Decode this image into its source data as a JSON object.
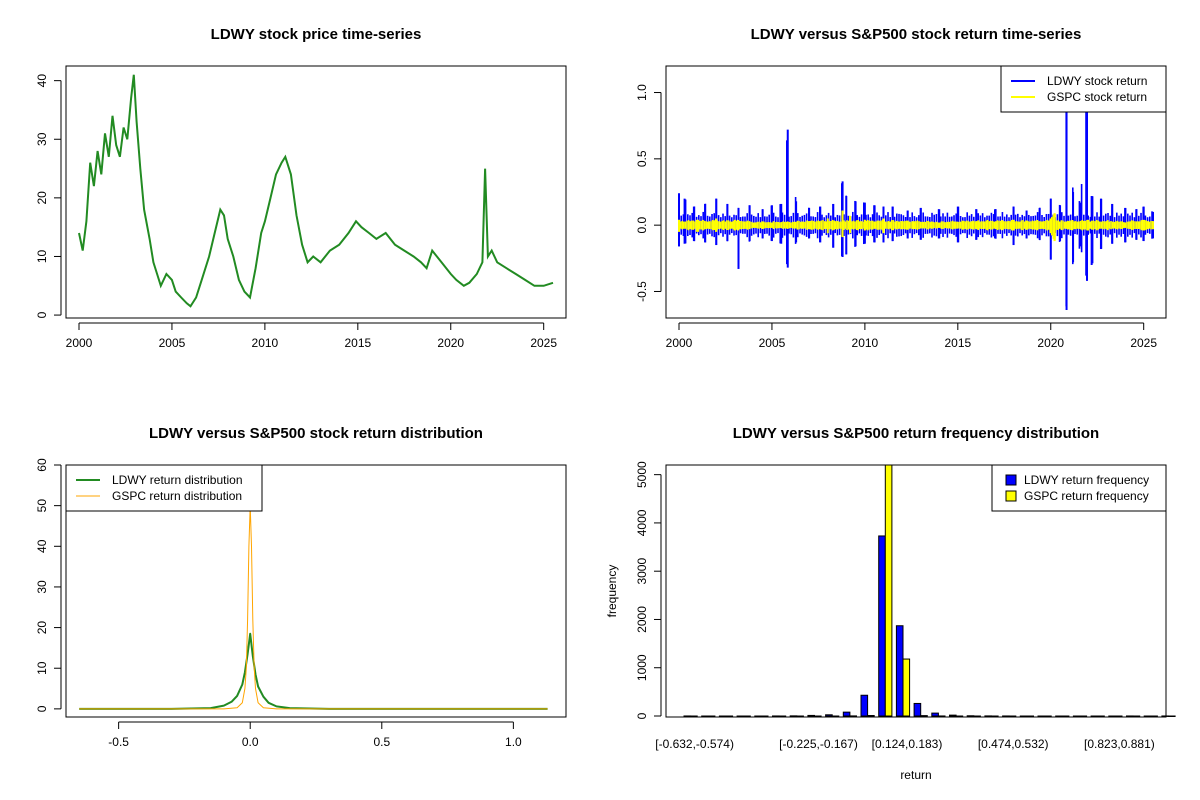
{
  "chart_data": [
    {
      "type": "line",
      "title": "LDWY stock price time-series",
      "xlabel": "",
      "ylabel": "",
      "xlim": [
        1999.3,
        2026.2
      ],
      "ylim": [
        -0.5,
        42.5
      ],
      "x_ticks": [
        "2000",
        "2005",
        "2010",
        "2015",
        "2020",
        "2025"
      ],
      "y_ticks": [
        "0",
        "10",
        "20",
        "30",
        "40"
      ],
      "colors": {
        "line": "#228B22"
      },
      "series": [
        {
          "x": [
            2000.0,
            2000.2,
            2000.4,
            2000.6,
            2000.8,
            2001.0,
            2001.2,
            2001.4,
            2001.6,
            2001.8,
            2002.0,
            2002.2,
            2002.4,
            2002.6,
            2002.8,
            2002.95,
            2003.1,
            2003.3,
            2003.5,
            2003.8,
            2004.0,
            2004.2,
            2004.4,
            2004.7,
            2005.0,
            2005.2,
            2005.5,
            2005.8,
            2006.0,
            2006.3,
            2006.6,
            2007.0,
            2007.3,
            2007.6,
            2007.8,
            2008.0,
            2008.3,
            2008.6,
            2008.9,
            2009.2,
            2009.5,
            2009.8,
            2010.0,
            2010.3,
            2010.6,
            2010.9,
            2011.1,
            2011.4,
            2011.7,
            2012.0,
            2012.3,
            2012.6,
            2013.0,
            2013.5,
            2014.0,
            2014.5,
            2014.9,
            2015.2,
            2015.6,
            2016.0,
            2016.5,
            2017.0,
            2017.5,
            2018.0,
            2018.4,
            2018.7,
            2019.0,
            2019.5,
            2020.0,
            2020.3,
            2020.7,
            2021.0,
            2021.4,
            2021.7,
            2021.85,
            2022.0,
            2022.2,
            2022.5,
            2023.0,
            2023.5,
            2024.0,
            2024.5,
            2025.0,
            2025.5
          ],
          "y": [
            14,
            11,
            16,
            26,
            22,
            28,
            24,
            31,
            27,
            34,
            29,
            27,
            32,
            30,
            37,
            41,
            33,
            25,
            18,
            13,
            9,
            7,
            5,
            7,
            6,
            4,
            3,
            2,
            1.5,
            3,
            6,
            10,
            14,
            18,
            17,
            13,
            10,
            6,
            4,
            3,
            8,
            14,
            16,
            20,
            24,
            26,
            27,
            24,
            17,
            12,
            9,
            10,
            9,
            11,
            12,
            14,
            16,
            15,
            14,
            13,
            14,
            12,
            11,
            10,
            9,
            8,
            11,
            9,
            7,
            6,
            5,
            5.5,
            7,
            9,
            25,
            10,
            11,
            9,
            8,
            7,
            6,
            5,
            5,
            5.5
          ]
        }
      ]
    },
    {
      "type": "line",
      "title": "LDWY versus S&P500 stock return time-series",
      "xlabel": "",
      "ylabel": "",
      "xlim": [
        1999.3,
        2026.2
      ],
      "ylim": [
        -0.7,
        1.2
      ],
      "x_ticks": [
        "2000",
        "2005",
        "2010",
        "2015",
        "2020",
        "2025"
      ],
      "y_ticks": [
        "-0.5",
        "0.0",
        "0.5",
        "1.0"
      ],
      "legend": {
        "position": "top-right"
      },
      "series": [
        {
          "name": "LDWY stock return",
          "color": "#0000FF",
          "x": [
            2000.0,
            2000.3,
            2000.8,
            2001.4,
            2002.0,
            2002.6,
            2003.2,
            2003.8,
            2004.5,
            2005.0,
            2005.5,
            2005.85,
            2006.3,
            2007.0,
            2007.6,
            2008.3,
            2008.8,
            2009.0,
            2009.5,
            2010.0,
            2010.5,
            2011.0,
            2011.5,
            2012.3,
            2013.0,
            2014.0,
            2015.0,
            2016.0,
            2017.0,
            2018.0,
            2018.7,
            2019.4,
            2020.0,
            2020.5,
            2020.85,
            2021.2,
            2021.6,
            2021.95,
            2022.2,
            2022.7,
            2023.3,
            2024.0,
            2024.6,
            2025.0,
            2025.5
          ],
          "max": [
            0.24,
            0.2,
            0.14,
            0.16,
            0.2,
            0.16,
            0.13,
            0.15,
            0.12,
            0.15,
            0.16,
            0.72,
            0.18,
            0.13,
            0.14,
            0.16,
            0.33,
            0.22,
            0.18,
            0.17,
            0.15,
            0.14,
            0.14,
            0.11,
            0.13,
            0.12,
            0.14,
            0.12,
            0.12,
            0.14,
            0.11,
            0.13,
            0.2,
            0.15,
            1.13,
            0.25,
            0.17,
            0.99,
            0.22,
            0.2,
            0.16,
            0.13,
            0.12,
            0.14,
            0.1
          ],
          "min": [
            -0.16,
            -0.14,
            -0.12,
            -0.13,
            -0.15,
            -0.12,
            -0.33,
            -0.12,
            -0.1,
            -0.12,
            -0.14,
            -0.32,
            -0.13,
            -0.1,
            -0.13,
            -0.17,
            -0.24,
            -0.22,
            -0.16,
            -0.14,
            -0.13,
            -0.13,
            -0.12,
            -0.1,
            -0.11,
            -0.1,
            -0.13,
            -0.11,
            -0.1,
            -0.15,
            -0.1,
            -0.11,
            -0.26,
            -0.12,
            -0.64,
            -0.28,
            -0.16,
            -0.42,
            -0.3,
            -0.18,
            -0.14,
            -0.13,
            -0.11,
            -0.12,
            -0.1
          ]
        },
        {
          "name": "GSPC stock return",
          "color": "#FFFF00",
          "x": [
            2000.0,
            2001.0,
            2002.0,
            2003.0,
            2004.0,
            2005.0,
            2006.0,
            2007.0,
            2008.0,
            2008.8,
            2009.2,
            2010.0,
            2011.0,
            2012.0,
            2014.0,
            2016.0,
            2018.0,
            2020.0,
            2020.2,
            2021.0,
            2022.0,
            2023.0,
            2024.0,
            2025.0,
            2025.5
          ],
          "max": [
            0.04,
            0.04,
            0.05,
            0.04,
            0.02,
            0.02,
            0.02,
            0.03,
            0.05,
            0.11,
            0.07,
            0.04,
            0.05,
            0.03,
            0.02,
            0.03,
            0.04,
            0.05,
            0.09,
            0.03,
            0.04,
            0.03,
            0.02,
            0.04,
            0.03
          ],
          "min": [
            -0.05,
            -0.05,
            -0.05,
            -0.04,
            -0.02,
            -0.02,
            -0.02,
            -0.03,
            -0.06,
            -0.09,
            -0.06,
            -0.04,
            -0.06,
            -0.03,
            -0.02,
            -0.03,
            -0.04,
            -0.06,
            -0.12,
            -0.03,
            -0.04,
            -0.03,
            -0.02,
            -0.04,
            -0.03
          ]
        }
      ]
    },
    {
      "type": "line",
      "title": "LDWY versus S&P500 stock return distribution",
      "xlabel": "",
      "ylabel": "",
      "xlim": [
        -0.7,
        1.2
      ],
      "ylim": [
        -2,
        60
      ],
      "x_ticks": [
        "-0.5",
        "0.0",
        "0.5",
        "1.0"
      ],
      "y_ticks": [
        "0",
        "10",
        "20",
        "30",
        "40",
        "50",
        "60"
      ],
      "legend": {
        "position": "top-left"
      },
      "series": [
        {
          "name": "LDWY return distribution",
          "color": "#228B22",
          "x": [
            -0.65,
            -0.3,
            -0.15,
            -0.1,
            -0.07,
            -0.05,
            -0.03,
            -0.02,
            -0.01,
            0.0,
            0.01,
            0.02,
            0.03,
            0.05,
            0.07,
            0.1,
            0.15,
            0.3,
            0.6,
            1.13
          ],
          "y": [
            0,
            0,
            0.2,
            0.8,
            1.8,
            3.2,
            6,
            9,
            13.5,
            18.5,
            13,
            8.5,
            5.5,
            3,
            1.5,
            0.6,
            0.2,
            0,
            0,
            0
          ]
        },
        {
          "name": "GSPC return distribution",
          "color": "#FFA500",
          "x": [
            -0.65,
            -0.1,
            -0.05,
            -0.03,
            -0.02,
            -0.015,
            -0.01,
            -0.005,
            0.0,
            0.005,
            0.01,
            0.015,
            0.02,
            0.03,
            0.05,
            0.1,
            1.13
          ],
          "y": [
            0,
            0,
            0.3,
            1.5,
            5,
            10,
            22,
            40,
            50,
            40,
            22,
            10,
            5,
            1.5,
            0.3,
            0,
            0
          ]
        }
      ]
    },
    {
      "type": "bar",
      "title": "LDWY versus S&P500 return frequency distribution",
      "xlabel": "return",
      "ylabel": "frequency",
      "ylim": [
        0,
        5200
      ],
      "y_ticks": [
        "0",
        "1000",
        "2000",
        "3000",
        "4000",
        "5000"
      ],
      "legend": {
        "position": "top-right"
      },
      "category_labels": [
        "[-0.632,-0.574)",
        "[-0.225,-0.167)",
        "[0.124,0.183)",
        "[0.474,0.532)",
        "[0.823,0.881)"
      ],
      "label_bins": [
        0,
        7,
        12,
        18,
        24
      ],
      "series": [
        {
          "name": "LDWY return frequency",
          "color": "#0000FF",
          "values": [
            1,
            0,
            0,
            0,
            0,
            1,
            3,
            12,
            25,
            80,
            430,
            3730,
            1870,
            260,
            60,
            18,
            5,
            2,
            1,
            0,
            0,
            0,
            0,
            0,
            0,
            1,
            0,
            1
          ]
        },
        {
          "name": "GSPC return frequency",
          "color": "#FFFF00",
          "values": [
            0,
            0,
            0,
            0,
            0,
            0,
            0,
            0,
            0,
            2,
            10,
            5200,
            1180,
            8,
            1,
            0,
            0,
            0,
            0,
            0,
            0,
            0,
            0,
            0,
            0,
            0,
            0,
            0
          ]
        }
      ]
    }
  ]
}
